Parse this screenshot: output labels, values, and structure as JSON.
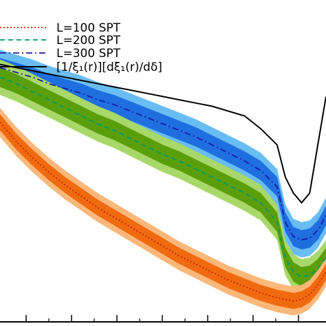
{
  "chart_data": {
    "type": "line",
    "legend_placement": "top-left",
    "grid": false,
    "x": [
      0,
      0.05,
      0.1,
      0.15,
      0.2,
      0.25,
      0.3,
      0.35,
      0.4,
      0.45,
      0.5,
      0.55,
      0.6,
      0.65,
      0.7,
      0.75,
      0.8,
      0.85,
      0.875,
      0.9,
      0.925,
      0.95,
      0.975,
      1.0
    ],
    "xlim": [
      0,
      1
    ],
    "ylim": [
      0,
      1
    ],
    "series": [
      {
        "name": "L=100 SPT",
        "style": "dotted",
        "color": "#cc2200",
        "values": [
          0.62,
          0.56,
          0.51,
          0.465,
          0.425,
          0.39,
          0.355,
          0.325,
          0.295,
          0.265,
          0.235,
          0.205,
          0.18,
          0.155,
          0.13,
          0.11,
          0.09,
          0.075,
          0.07,
          0.065,
          0.07,
          0.085,
          0.115,
          0.155
        ],
        "band_inner": "#f06a10",
        "band_outer": "#fbb87a",
        "band_inner_halfwidth": 0.025,
        "band_outer_halfwidth": 0.045
      },
      {
        "name": "L=200 SPT",
        "style": "dashed",
        "color": "#009966",
        "values": [
          0.76,
          0.74,
          0.715,
          0.69,
          0.665,
          0.64,
          0.615,
          0.595,
          0.57,
          0.545,
          0.52,
          0.5,
          0.475,
          0.45,
          0.425,
          0.4,
          0.37,
          0.31,
          0.2,
          0.155,
          0.14,
          0.145,
          0.165,
          0.2
        ],
        "band_inner": "#5a9e0a",
        "band_outer": "#a8d86a",
        "band_inner_halfwidth": 0.03,
        "band_outer_halfwidth": 0.055
      },
      {
        "name": "L=300 SPT",
        "style": "dashdot",
        "color": "#1a1aa0",
        "values": [
          0.79,
          0.775,
          0.76,
          0.74,
          0.725,
          0.71,
          0.69,
          0.675,
          0.655,
          0.635,
          0.615,
          0.595,
          0.575,
          0.55,
          0.525,
          0.5,
          0.47,
          0.42,
          0.31,
          0.265,
          0.255,
          0.26,
          0.285,
          0.33
        ],
        "band_inner": "#1f6fe0",
        "band_outer": "#69bdf3",
        "band_inner_halfwidth": 0.03,
        "band_outer_halfwidth": 0.055
      },
      {
        "name": "[1/ξ₁(r)][dξ₁(r)/dδ]",
        "style": "solid",
        "color": "#000000",
        "values": [
          0.8,
          0.79,
          0.78,
          0.77,
          0.76,
          0.75,
          0.74,
          0.73,
          0.72,
          0.71,
          0.7,
          0.69,
          0.68,
          0.67,
          0.655,
          0.64,
          0.6,
          0.55,
          0.45,
          0.4,
          0.37,
          0.4,
          0.55,
          0.7
        ]
      }
    ]
  }
}
